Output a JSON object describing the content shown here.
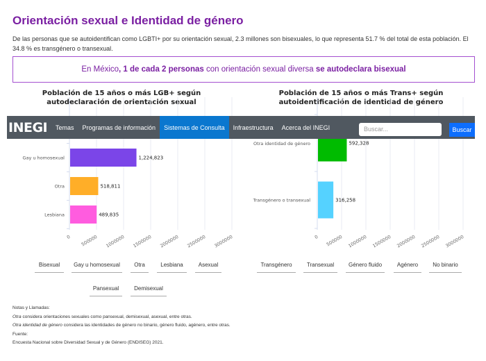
{
  "header": {
    "title": "Orientación sexual e Identidad de género",
    "intro": "De las personas que se autoidentifican como LGBTI+ por su orientación sexual, 2.3 millones son bisexuales, lo que representa 51.7 % del total de esta población. El 34.8 % es transgénero o transexual."
  },
  "callout": {
    "part1": "En México",
    "part2": ", 1 de cada 2 personas",
    "part3": " con orientación sexual diversa ",
    "part4": "se autodeclara bisexual"
  },
  "navbar": {
    "logo": "INEGI",
    "items": [
      "Temas",
      "Programas de información",
      "Sistemas de Consulta",
      "Infraestructura",
      "Acerca del INEGI"
    ],
    "active_item": "Sistemas de Consulta",
    "search_placeholder": "Buscar...",
    "search_button": "Buscar",
    "bg_color": "#505860",
    "active_color": "#0a77cf",
    "button_color": "#0d6efd"
  },
  "chart_data": [
    {
      "type": "bar",
      "orientation": "horizontal",
      "title": "Población de 15 años o más LGB+ según autodeclaración de orientación sexual",
      "categories": [
        "Gay u homosexual",
        "Otra",
        "Lesbiana"
      ],
      "values": [
        1224823,
        518811,
        489835
      ],
      "value_labels": [
        "1,224,823",
        "518,811",
        "489,835"
      ],
      "colors": [
        "#7b45e8",
        "#ffae28",
        "#ff5cdf"
      ],
      "xlim": [
        0,
        3000000
      ],
      "ticks": [
        "0",
        "500000",
        "1000000",
        "1500000",
        "2000000",
        "2500000",
        "3000000"
      ],
      "grid": true,
      "legend_items": [
        "Bisexual",
        "Gay u homosexual",
        "Otra",
        "Lesbiana",
        "Asexual",
        "Pansexual",
        "Demisexual"
      ],
      "legend_placement": "bottom"
    },
    {
      "type": "bar",
      "orientation": "horizontal",
      "title": "Población de 15 años o más Trans+ según autoidentificación de identidad de género",
      "categories": [
        "Otra identidad de género",
        "Transgénero o transexual"
      ],
      "values": [
        592328,
        316258
      ],
      "value_labels": [
        "592,328",
        "316,258"
      ],
      "colors": [
        "#00bb00",
        "#55d2ff"
      ],
      "xlim": [
        0,
        3000000
      ],
      "ticks": [
        "0",
        "500000",
        "1000000",
        "1500000",
        "2000000",
        "2500000",
        "3000000"
      ],
      "grid": true,
      "legend_items": [
        "Transgénero",
        "Transexual",
        "Género fluido",
        "Agénero",
        "No binario"
      ],
      "legend_placement": "bottom"
    }
  ],
  "notes": {
    "heading": "Notas y Llamadas:",
    "note1_term": "Otra",
    "note1_text": " considera orientaciones sexuales como pansexual, demisexual, asexual, entre otras.",
    "note2_term": "Otra identidad de género",
    "note2_text": " considera las identidades de género no binario, género fluido, agénero, entre otras.",
    "source_heading": "Fuente:",
    "source_text": "Encuesta Nacional sobre Diversidad Sexual y de Género (ENDISEG) 2021."
  }
}
